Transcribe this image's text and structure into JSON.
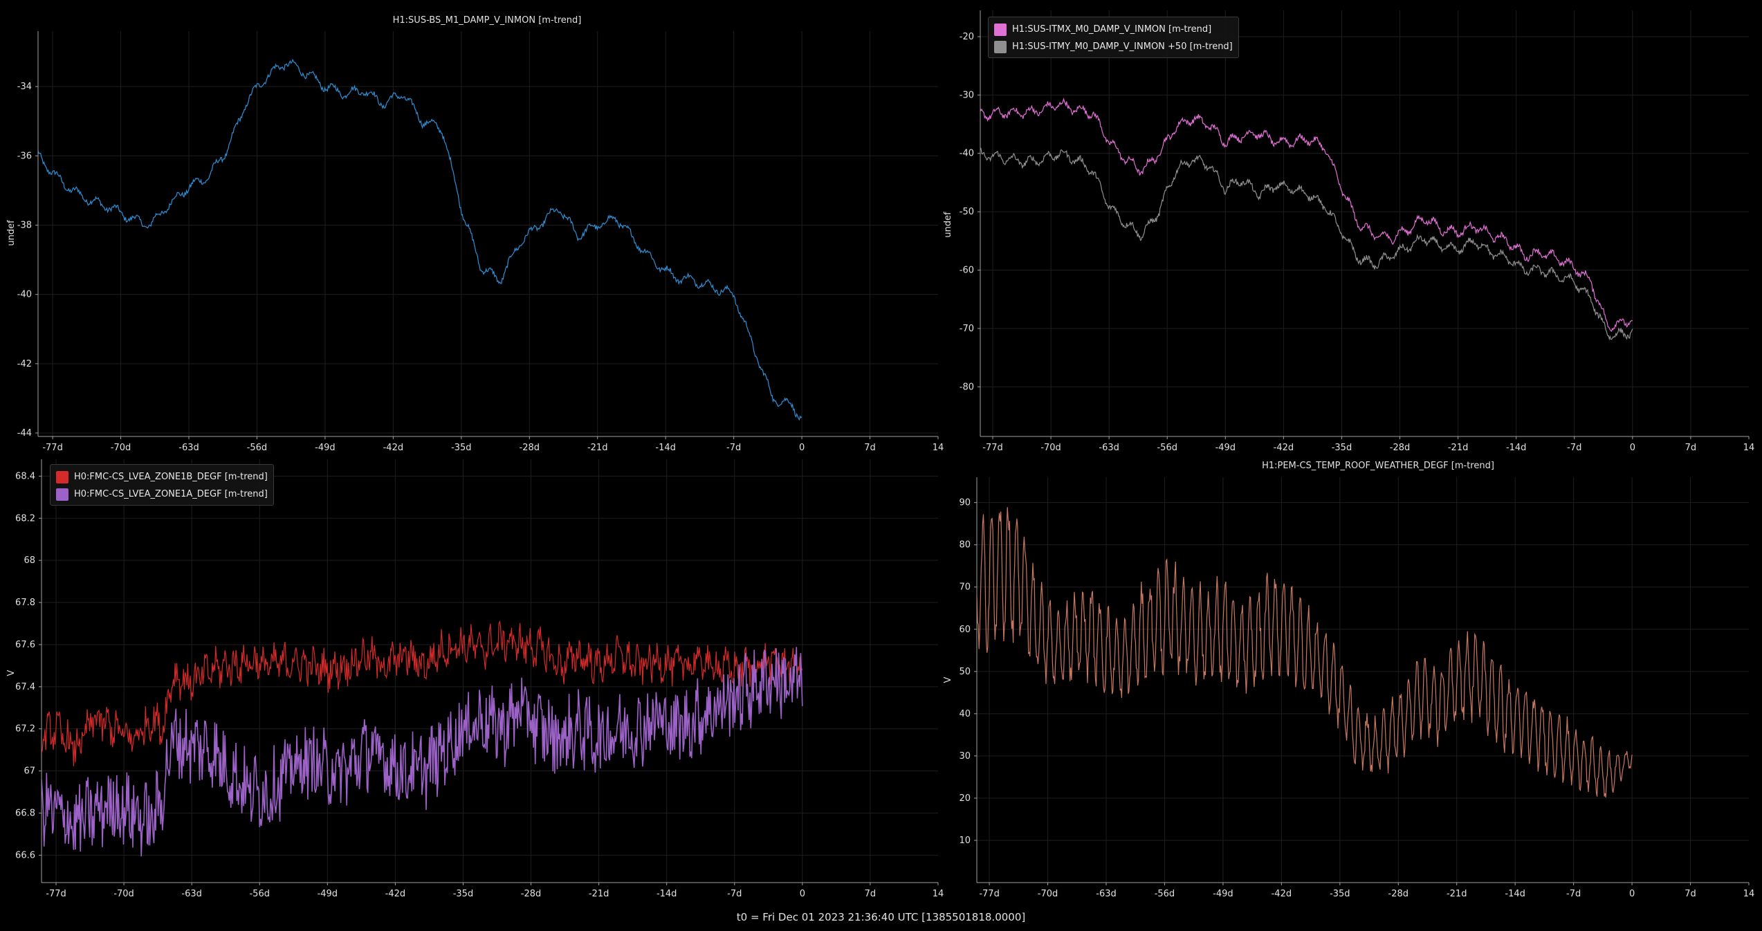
{
  "footer": "t0 = Fri Dec 01 2023 21:36:40 UTC [1385501818.0000]",
  "x_ticks": [
    "-77d",
    "-70d",
    "-63d",
    "-56d",
    "-49d",
    "-42d",
    "-35d",
    "-28d",
    "-21d",
    "-14d",
    "-7d",
    "0",
    "7d",
    "14"
  ],
  "chart_data": [
    {
      "type": "line",
      "title": "H1:SUS-BS_M1_DAMP_V_INMON [m-trend]",
      "ylabel": "undef",
      "xlim": [
        -78.5,
        14
      ],
      "ylim": [
        -44.1,
        -32.4
      ],
      "yticks": [
        -34,
        -36,
        -38,
        -40,
        -42,
        -44
      ],
      "grid": true,
      "series": [
        {
          "name": "H1:SUS-BS_M1_DAMP_V_INMON [m-trend]",
          "color": "#2e8fd6",
          "x": [
            -79,
            -77,
            -75,
            -73,
            -71,
            -69,
            -67,
            -65,
            -63,
            -61,
            -59,
            -57,
            -55,
            -53,
            -51,
            -49,
            -47,
            -45,
            -43,
            -41,
            -39,
            -37,
            -35,
            -33,
            -31,
            -29,
            -27,
            -25,
            -23,
            -21,
            -19,
            -17,
            -15,
            -13,
            -11,
            -9,
            -7,
            -5,
            -3,
            -1,
            0
          ],
          "y": [
            -35.8,
            -36.5,
            -37.0,
            -37.3,
            -37.5,
            -37.8,
            -38.0,
            -37.4,
            -36.9,
            -36.6,
            -35.8,
            -34.4,
            -33.7,
            -33.3,
            -33.6,
            -34.0,
            -34.2,
            -34.1,
            -34.5,
            -34.2,
            -35.0,
            -35.2,
            -37.5,
            -39.2,
            -39.6,
            -38.5,
            -38.0,
            -37.5,
            -38.3,
            -38.0,
            -37.8,
            -38.5,
            -39.1,
            -39.5,
            -39.6,
            -39.8,
            -40.0,
            -41.5,
            -43.0,
            -43.2,
            -43.6
          ]
        }
      ]
    },
    {
      "type": "line",
      "title": "",
      "ylabel": "undef",
      "xlim": [
        -78.5,
        14
      ],
      "ylim": [
        -88.5,
        -15.5
      ],
      "yticks": [
        -20,
        -30,
        -40,
        -50,
        -60,
        -70,
        -80
      ],
      "grid": true,
      "legend_position": "top-left",
      "series": [
        {
          "name": "H1:SUS-ITMX_M0_DAMP_V_INMON [m-trend]",
          "color": "#e070d4",
          "x": [
            -79,
            -77,
            -75,
            -73,
            -71,
            -69,
            -67,
            -65,
            -63,
            -61,
            -59,
            -57,
            -55,
            -53,
            -51,
            -49,
            -47,
            -45,
            -43,
            -41,
            -39,
            -37,
            -35,
            -33,
            -31,
            -29,
            -27,
            -25,
            -23,
            -21,
            -19,
            -17,
            -15,
            -13,
            -11,
            -9,
            -7,
            -5,
            -3,
            -1,
            0
          ],
          "y": [
            -33.5,
            -33.2,
            -33.0,
            -33.0,
            -32.5,
            -31.5,
            -32.5,
            -33.0,
            -38.0,
            -41.0,
            -43.0,
            -40.0,
            -35.5,
            -34.0,
            -35.0,
            -38.0,
            -37.0,
            -36.5,
            -38.0,
            -38.0,
            -37.5,
            -39.0,
            -46.0,
            -52.0,
            -54.0,
            -54.5,
            -53.0,
            -51.0,
            -53.0,
            -53.5,
            -52.5,
            -54.0,
            -55.0,
            -57.5,
            -57.0,
            -58.0,
            -59.5,
            -62.0,
            -69.5,
            -69.0,
            -68.5
          ]
        },
        {
          "name": "H1:SUS-ITMY_M0_DAMP_V_INMON +50 [m-trend]",
          "color": "#909090",
          "x": [
            -79,
            -77,
            -75,
            -73,
            -71,
            -69,
            -67,
            -65,
            -63,
            -61,
            -59,
            -57,
            -55,
            -53,
            -51,
            -49,
            -47,
            -45,
            -43,
            -41,
            -39,
            -37,
            -35,
            -33,
            -31,
            -29,
            -27,
            -25,
            -23,
            -21,
            -19,
            -17,
            -15,
            -13,
            -11,
            -9,
            -7,
            -5,
            -3,
            -1,
            0
          ],
          "y": [
            -40.0,
            -40.5,
            -41.0,
            -41.5,
            -41.0,
            -40.0,
            -41.0,
            -43.0,
            -49.0,
            -52.0,
            -54.0,
            -50.0,
            -43.0,
            -41.0,
            -42.0,
            -46.0,
            -44.5,
            -47.0,
            -45.5,
            -46.0,
            -47.0,
            -49.0,
            -53.5,
            -58.0,
            -59.0,
            -57.5,
            -56.0,
            -54.5,
            -56.0,
            -56.5,
            -55.0,
            -57.0,
            -58.0,
            -60.0,
            -60.0,
            -61.0,
            -62.0,
            -65.0,
            -71.0,
            -71.0,
            -70.5
          ]
        }
      ]
    },
    {
      "type": "line",
      "title": "",
      "ylabel": "V",
      "xlim": [
        -78.5,
        14
      ],
      "ylim": [
        66.47,
        68.48
      ],
      "yticks": [
        66.6,
        66.8,
        67,
        67.2,
        67.4,
        67.6,
        67.8,
        68,
        68.2,
        68.4
      ],
      "grid": true,
      "legend_position": "top-left",
      "series": [
        {
          "name": "H0:FMC-CS_LVEA_ZONE1B_DEGF [m-trend]",
          "color": "#d42a2a",
          "x": [
            -79,
            -77,
            -75,
            -73,
            -71,
            -69,
            -67,
            -66,
            -65,
            -63,
            -61,
            -59,
            -57,
            -55,
            -53,
            -51,
            -49,
            -47,
            -45,
            -43,
            -41,
            -39,
            -37,
            -35,
            -33,
            -31,
            -29,
            -27,
            -25,
            -23,
            -21,
            -19,
            -17,
            -15,
            -13,
            -11,
            -9,
            -7,
            -5,
            -3,
            -1,
            0
          ],
          "y": [
            67.15,
            67.2,
            67.1,
            67.25,
            67.2,
            67.15,
            67.25,
            67.2,
            67.45,
            67.42,
            67.48,
            67.5,
            67.52,
            67.5,
            67.52,
            67.5,
            67.48,
            67.5,
            67.55,
            67.5,
            67.55,
            67.5,
            67.58,
            67.6,
            67.58,
            67.62,
            67.6,
            67.58,
            67.5,
            67.55,
            67.5,
            67.55,
            67.5,
            67.52,
            67.5,
            67.52,
            67.5,
            67.48,
            67.5,
            67.52,
            67.5,
            67.52
          ]
        },
        {
          "name": "H0:FMC-CS_LVEA_ZONE1A_DEGF [m-trend]",
          "color": "#9c62c8",
          "x": [
            -79,
            -77,
            -75,
            -73,
            -71,
            -69,
            -67,
            -66,
            -65,
            -63,
            -61,
            -59,
            -57,
            -55,
            -53,
            -51,
            -49,
            -47,
            -45,
            -43,
            -41,
            -39,
            -37,
            -35,
            -33,
            -31,
            -29,
            -27,
            -25,
            -23,
            -21,
            -19,
            -17,
            -15,
            -13,
            -11,
            -9,
            -7,
            -5,
            -3,
            -1,
            0
          ],
          "y": [
            66.85,
            66.8,
            66.75,
            66.8,
            66.85,
            66.8,
            66.75,
            66.9,
            67.15,
            67.12,
            67.1,
            67.0,
            66.9,
            66.9,
            67.0,
            67.05,
            67.0,
            67.0,
            67.1,
            67.05,
            67.0,
            67.0,
            67.1,
            67.2,
            67.25,
            67.2,
            67.3,
            67.2,
            67.15,
            67.2,
            67.15,
            67.2,
            67.2,
            67.25,
            67.2,
            67.25,
            67.3,
            67.35,
            67.4,
            67.45,
            67.4,
            67.45
          ]
        }
      ]
    },
    {
      "type": "line",
      "title": "H1:PEM-CS_TEMP_ROOF_WEATHER_DEGF [m-trend]",
      "ylabel": "V",
      "xlim": [
        -78.5,
        14
      ],
      "ylim": [
        0,
        96
      ],
      "yticks": [
        10,
        20,
        30,
        40,
        50,
        60,
        70,
        80,
        90
      ],
      "grid": true,
      "series": [
        {
          "name": "H1:PEM-CS_TEMP_ROOF_WEATHER_DEGF [m-trend]",
          "color": "#c87860",
          "x": [
            -79,
            -77,
            -75,
            -73,
            -71,
            -69,
            -67,
            -65,
            -63,
            -61,
            -59,
            -57,
            -55,
            -53,
            -51,
            -49,
            -47,
            -45,
            -43,
            -41,
            -39,
            -37,
            -35,
            -33,
            -31,
            -29,
            -27,
            -25,
            -23,
            -21,
            -19,
            -17,
            -15,
            -13,
            -11,
            -9,
            -7,
            -5,
            -3,
            -1,
            0
          ],
          "y": [
            68,
            72,
            75,
            70,
            60,
            55,
            58,
            60,
            55,
            52,
            58,
            62,
            63,
            60,
            58,
            60,
            55,
            57,
            62,
            60,
            55,
            52,
            45,
            35,
            32,
            35,
            40,
            45,
            42,
            48,
            50,
            45,
            40,
            38,
            35,
            33,
            30,
            28,
            25,
            28,
            30
          ],
          "amp": [
            12,
            14,
            16,
            14,
            10,
            8,
            9,
            10,
            9,
            8,
            10,
            11,
            12,
            11,
            10,
            11,
            9,
            10,
            11,
            10,
            9,
            8,
            8,
            7,
            6,
            7,
            8,
            9,
            8,
            9,
            10,
            9,
            8,
            8,
            7,
            7,
            6,
            6,
            5,
            3,
            2
          ]
        }
      ]
    }
  ]
}
